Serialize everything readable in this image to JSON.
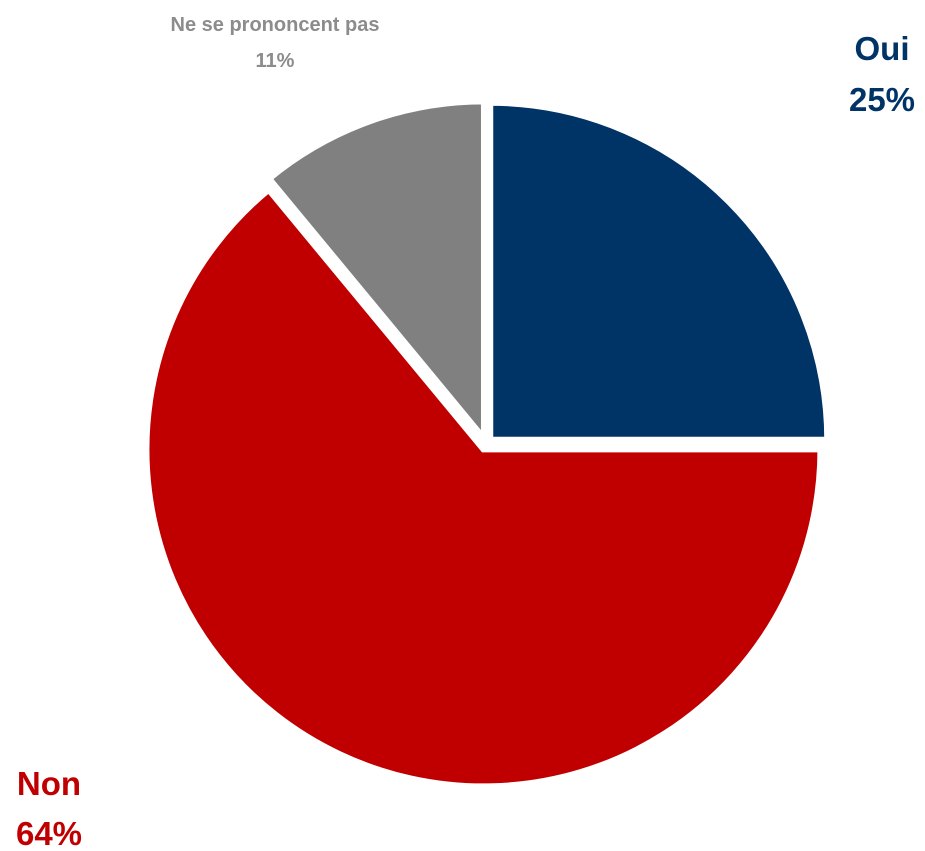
{
  "chart_data": {
    "type": "pie",
    "slices": [
      {
        "label": "Oui",
        "value": 25,
        "value_label": "25%",
        "color": "#003366"
      },
      {
        "label": "Non",
        "value": 64,
        "value_label": "64%",
        "color": "#C00000"
      },
      {
        "label": "Ne se prononcent pas",
        "value": 11,
        "value_label": "11%",
        "color": "#808080"
      }
    ],
    "start_angle": "12 o'clock",
    "direction": "clockwise",
    "exploded": true,
    "legend": "none",
    "title": ""
  }
}
